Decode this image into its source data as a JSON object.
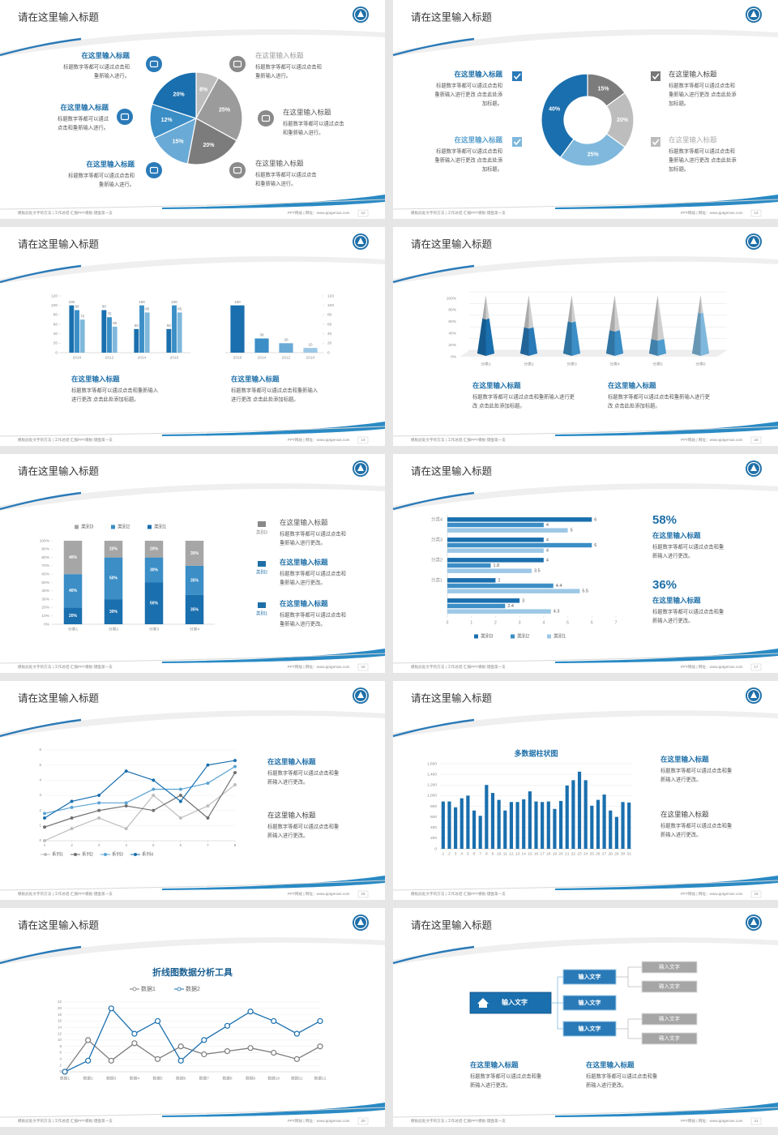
{
  "slides": [
    {
      "title": "请在这里输入标题",
      "footer_left": "模板此处文字的方法 | 工作总结-汇报PPT模板-键盘第一支",
      "footer_right": "PPT网站 | 网址：www.pptgenius.com",
      "page": 12,
      "blocks": [
        {
          "heading": "在这里输入标题",
          "lines": [
            "标题数字等都可以通过点击和",
            "重新输入进行。"
          ]
        },
        {
          "heading": "在这里输入标题",
          "lines": [
            "标题数字等都可以通过",
            "点击和重新输入进行。"
          ]
        },
        {
          "heading": "在这里输入标题",
          "lines": [
            "标题数字等都可以通过点击和",
            "重新输入进行。"
          ]
        },
        {
          "heading": "在这里输入标题",
          "lines": [
            "标题数字等都可以通过点击和",
            "重新输入进行。"
          ]
        },
        {
          "heading": "在这里输入标题",
          "lines": [
            "标题数字等都可以通过点击",
            "和重新输入进行。"
          ]
        },
        {
          "heading": "在这里输入标题",
          "lines": [
            "标题数字等都可以通过点击",
            "和重新输入进行。"
          ]
        }
      ],
      "chart_data": {
        "type": "pie",
        "values": [
          8,
          25,
          20,
          15,
          12,
          20
        ],
        "value_labels": [
          "8%",
          "25%",
          "20%",
          "15%",
          "12%",
          "20%"
        ],
        "colors": [
          "#bdbdbd",
          "#9b9b9b",
          "#7c7c7c",
          "#6aaad6",
          "#3b8ec6",
          "#1a6fae"
        ]
      }
    },
    {
      "title": "请在这里输入标题",
      "footer_left": "模板此处文字的方法 | 工作总结-汇报PPT模板-键盘第一支",
      "footer_right": "PPT网站 | 网址：www.pptgenius.com",
      "page": 13,
      "blocks": [
        {
          "heading": "在这里输入标题",
          "lines": [
            "标题数字等都可以通过点击和",
            "重新输入进行更改 点击此处添",
            "加标题。"
          ]
        },
        {
          "heading": "在这里输入标题",
          "lines": [
            "标题数字等都可以通过点击和",
            "重新输入进行更改 点击此处添",
            "加标题。"
          ]
        },
        {
          "heading": "在这里输入标题",
          "lines": [
            "标题数字等都可以通过点击和",
            "重新输入进行更改 点击此处添",
            "加标题。"
          ]
        },
        {
          "heading": "在这里输入标题",
          "lines": [
            "标题数字等都可以通过点击和",
            "重新输入进行更改 点击此处添",
            "加标题。"
          ]
        }
      ],
      "chart_data": {
        "type": "donut",
        "values": [
          15,
          20,
          25,
          40
        ],
        "value_labels": [
          "15%",
          "20%",
          "25%",
          "40%"
        ],
        "colors": [
          "#7c7c7c",
          "#bdbdbd",
          "#7fb8dc",
          "#1a6fae"
        ]
      }
    },
    {
      "title": "请在这里输入标题",
      "footer_left": "模板此处文字的方法 | 工作总结-汇报PPT模板-键盘第一支",
      "footer_right": "PPT网站 | 网址：www.pptgenius.com",
      "page": 14,
      "blocks": [
        {
          "heading": "在这里输入标题",
          "lines": [
            "标题数字等都可以通过点击和重新输入",
            "进行更改 点击此处添加标题。"
          ]
        },
        {
          "heading": "在这里输入标题",
          "lines": [
            "标题数字等都可以通过点击和重新输入",
            "进行更改 点击此处添加标题。"
          ]
        }
      ],
      "chart_data": [
        {
          "type": "bar",
          "categories": [
            "2010",
            "2012",
            "2014",
            "2016"
          ],
          "series": [
            {
              "color": "#1a6fae",
              "values": [
                100,
                90,
                50,
                50
              ]
            },
            {
              "color": "#3b8ec6",
              "values": [
                90,
                75,
                100,
                100
              ]
            },
            {
              "color": "#7fb8dc",
              "values": [
                70,
                55,
                85,
                85
              ]
            }
          ],
          "ylim": [
            0,
            120
          ],
          "yticks": [
            0,
            20,
            40,
            60,
            80,
            100,
            120
          ]
        },
        {
          "type": "bar",
          "categories": [
            "2016",
            "2014",
            "2012",
            "2010"
          ],
          "values": [
            100,
            30,
            20,
            10
          ],
          "color": "#1a6fae",
          "value_colors": [
            "#1a6fae",
            "#3b8ec6",
            "#6aaad6",
            "#9cc8e6"
          ],
          "ylim": [
            0,
            120
          ],
          "yticks": [
            0,
            20,
            40,
            60,
            80,
            100,
            120
          ],
          "y_axis": "right"
        }
      ]
    },
    {
      "title": "请在这里输入标题",
      "footer_left": "模板此处文字的方法 | 工作总结-汇报PPT模板-键盘第一支",
      "footer_right": "PPT网站 | 网址：www.pptgenius.com",
      "page": 15,
      "blocks": [
        {
          "heading": "在这里输入标题",
          "lines": [
            "标题数字等都可以通过点击和重新输入进行更",
            "改 点击此处添加标题。"
          ]
        },
        {
          "heading": "在这里输入标题",
          "lines": [
            "标题数字等都可以通过点击和重新输入进行更",
            "改 点击此处添加标题。"
          ]
        }
      ],
      "chart_data": {
        "type": "pyramid",
        "categories": [
          "分类1",
          "分类2",
          "分类3",
          "分类4",
          "分类5",
          "分类6"
        ],
        "series": [
          {
            "values": [
              60,
              45,
              55,
              40,
              25,
              70
            ],
            "colors": [
              "#1a6fae",
              "#2a7ab8",
              "#3b8ec6",
              "#3b8ec6",
              "#4f9ccf",
              "#7fb8dc"
            ]
          },
          {
            "values": [
              40,
              55,
              45,
              60,
              75,
              30
            ],
            "color": "#cfcfcf"
          }
        ],
        "ylim": [
          0,
          100
        ],
        "yticks": [
          {
            "value": 0,
            "label": "0%"
          },
          {
            "value": 20,
            "label": "20%"
          },
          {
            "value": 40,
            "label": "40%"
          },
          {
            "value": 60,
            "label": "60%"
          },
          {
            "value": 80,
            "label": "80%"
          },
          {
            "value": 100,
            "label": "100%"
          }
        ],
        "grid": true
      }
    },
    {
      "title": "请在这里输入标题",
      "footer_left": "模板此处文字的方法 | 工作总结-汇报PPT模板-键盘第一支",
      "footer_right": "PPT网站 | 网址：www.pptgenius.com",
      "page": 16,
      "blocks": [
        {
          "heading": "在这里输入标题",
          "lines": [
            "标题数字等都可以通过点击和",
            "重新输入进行更改。"
          ],
          "label": "类别3"
        },
        {
          "heading": "在这里输入标题",
          "lines": [
            "标题数字等都可以通过点击和",
            "重新输入进行更改。"
          ],
          "label": "类别2"
        },
        {
          "heading": "在这里输入标题",
          "lines": [
            "标题数字等都可以通过点击和",
            "重新输入进行更改。"
          ],
          "label": "类别1"
        }
      ],
      "chart_data": {
        "type": "bar",
        "stacked": true,
        "legend": "top",
        "categories": [
          "分类1",
          "分类2",
          "分类3",
          "分类4"
        ],
        "series": [
          {
            "name": "类别3",
            "color": "#a6a6a6",
            "values": [
              40,
              20,
              20,
              30
            ],
            "value_labels": [
              "40%",
              "20%",
              "20%",
              "30%"
            ]
          },
          {
            "name": "类别2",
            "color": "#3b8ec6",
            "values": [
              40,
              50,
              30,
              35
            ],
            "value_labels": [
              "40%",
              "50%",
              "30%",
              "35%"
            ]
          },
          {
            "name": "类别1",
            "color": "#1a6fae",
            "values": [
              20,
              30,
              50,
              35
            ],
            "value_labels": [
              "20%",
              "30%",
              "50%",
              "35%"
            ]
          }
        ],
        "ylim": [
          0,
          100
        ],
        "yticks": [
          {
            "value": 0,
            "label": "0%"
          },
          {
            "value": 10,
            "label": "10%"
          },
          {
            "value": 20,
            "label": "20%"
          },
          {
            "value": 30,
            "label": "30%"
          },
          {
            "value": 40,
            "label": "40%"
          },
          {
            "value": 50,
            "label": "50%"
          },
          {
            "value": 60,
            "label": "60%"
          },
          {
            "value": 70,
            "label": "70%"
          },
          {
            "value": 80,
            "label": "80%"
          },
          {
            "value": 90,
            "label": "90%"
          },
          {
            "value": 100,
            "label": "100%"
          }
        ]
      }
    },
    {
      "title": "请在这里输入标题",
      "footer_left": "模板此处文字的方法 | 工作总结-汇报PPT模板-键盘第一支",
      "footer_right": "PPT网站 | 网址：www.pptgenius.com",
      "page": 17,
      "blocks": [
        {
          "percent": "58%",
          "heading": "在这里输入标题",
          "lines": [
            "标题数字等都可以通过点击和重",
            "新输入进行更改。"
          ]
        },
        {
          "percent": "36%",
          "heading": "在这里输入标题",
          "lines": [
            "标题数字等都可以通过点击和重",
            "新输入进行更改。"
          ]
        }
      ],
      "chart_data": {
        "type": "bar",
        "orientation": "horizontal",
        "legend": "bottom",
        "categories": [
          null,
          "分类1",
          "分类2",
          "分类3",
          "分类4"
        ],
        "series": [
          {
            "name": "类别3",
            "color": "#1a6fae",
            "values": [
              3,
              2,
              4,
              4,
              6
            ]
          },
          {
            "name": "类别2",
            "color": "#3b8ec6",
            "values": [
              2.4,
              4.4,
              1.8,
              6,
              4
            ]
          },
          {
            "name": "类别1",
            "color": "#9cc8e6",
            "values": [
              4.3,
              5.5,
              3.5,
              4,
              5
            ]
          }
        ],
        "xlim": [
          0,
          7
        ],
        "xticks": [
          0,
          1,
          2,
          3,
          4,
          5,
          6,
          7
        ]
      }
    },
    {
      "title": "请在这里输入标题",
      "footer_left": "模板此处文字的方法 | 工作总结-汇报PPT模板-键盘第一支",
      "footer_right": "PPT网站 | 网址：www.pptgenius.com",
      "page": 18,
      "blocks": [
        {
          "heading": "在这里输入标题",
          "lines": [
            "标题数字等都可以通过点击和重",
            "新输入进行更改。"
          ]
        },
        {
          "heading": "在这里输入标题",
          "lines": [
            "标题数字等都可以通过点击和重",
            "新输入进行更改。"
          ]
        }
      ],
      "chart_data": {
        "type": "line",
        "legend": "bottom",
        "markers": "dot",
        "x": [
          1,
          2,
          3,
          4,
          5,
          6,
          7,
          8
        ],
        "xlim": [
          1,
          8
        ],
        "xticks": [
          1,
          2,
          3,
          4,
          5,
          6,
          7,
          8
        ],
        "series": [
          {
            "name": "系列1",
            "color": "#bdbdbd",
            "values": [
              0,
              0.8,
              1.5,
              0.8,
              3,
              1.5,
              2.3,
              3.7
            ]
          },
          {
            "name": "系列2",
            "color": "#6f6f6f",
            "values": [
              0.9,
              1.5,
              2,
              2.3,
              2,
              3,
              1.5,
              4.5
            ]
          },
          {
            "name": "系列3",
            "color": "#5aa3d4",
            "values": [
              1.8,
              2.2,
              2.5,
              2.5,
              3.4,
              3.4,
              3.8,
              4.9
            ]
          },
          {
            "name": "系列4",
            "color": "#1a6fae",
            "values": [
              1.5,
              2.6,
              3,
              4.6,
              4,
              2.6,
              5,
              5.3
            ]
          }
        ],
        "ylim": [
          0,
          6
        ],
        "yticks": [
          0,
          1,
          2,
          3,
          4,
          5,
          6
        ],
        "grid": true
      }
    },
    {
      "title": "请在这里输入标题",
      "footer_left": "模板此处文字的方法 | 工作总结-汇报PPT模板-键盘第一支",
      "footer_right": "PPT网站 | 网址：www.pptgenius.com",
      "page": 19,
      "blocks": [
        {
          "heading": "在这里输入标题",
          "lines": [
            "标题数字等都可以通过点击和重",
            "新输入进行更改。"
          ]
        },
        {
          "heading": "在这里输入标题",
          "lines": [
            "标题数字等都可以通过点击和重",
            "新输入进行更改。"
          ]
        }
      ],
      "chart_data": {
        "type": "bar",
        "title": "多数据柱状图",
        "categories": [
          "1",
          "2",
          "3",
          "4",
          "5",
          "6",
          "7",
          "8",
          "9",
          "10",
          "11",
          "12",
          "13",
          "14",
          "15",
          "16",
          "17",
          "18",
          "19",
          "20",
          "21",
          "22",
          "23",
          "24",
          "25",
          "26",
          "27",
          "28",
          "29",
          "30",
          "31"
        ],
        "values": [
          890,
          890,
          780,
          950,
          1000,
          720,
          620,
          1200,
          1050,
          920,
          720,
          880,
          880,
          930,
          1080,
          890,
          880,
          890,
          750,
          900,
          1190,
          1290,
          1450,
          1290,
          810,
          920,
          1020,
          720,
          600,
          880,
          870
        ],
        "color": "#1a6fae",
        "ylim": [
          0,
          1600
        ],
        "yticks": [
          0,
          200,
          400,
          600,
          800,
          {
            "value": 1000,
            "label": "1,000"
          },
          {
            "value": 1200,
            "label": "1,200"
          },
          {
            "value": 1400,
            "label": "1,400"
          },
          {
            "value": 1600,
            "label": "1,600"
          }
        ],
        "grid": true
      }
    },
    {
      "title": "请在这里输入标题",
      "footer_left": "模板此处文字的方法 | 工作总结-汇报PPT模板-键盘第一支",
      "footer_right": "PPT网站 | 网址：www.pptgenius.com",
      "page": 20,
      "blocks": [],
      "chart_data": {
        "type": "line",
        "title": "折线图数据分析工具",
        "legend": "top",
        "markers": "ring",
        "categories": [
          "数据1",
          "数据2",
          "数据3",
          "数据4",
          "数据5",
          "数据6",
          "数据7",
          "数据8",
          "数据9",
          "数据10",
          "数据11",
          "数据12"
        ],
        "series": [
          {
            "name": "数据1",
            "color": "#7c7c7c",
            "values": [
              0,
              10,
              3.5,
              9,
              4,
              8,
              5.5,
              6.5,
              7.5,
              6,
              4,
              8
            ]
          },
          {
            "name": "数据2",
            "color": "#1a6fae",
            "values": [
              0,
              3.5,
              20,
              12,
              16,
              3.5,
              10,
              14.5,
              19,
              16,
              12,
              16
            ]
          }
        ],
        "ylim": [
          0,
          22
        ],
        "yticks": [
          0,
          2,
          4,
          6,
          8,
          10,
          12,
          14,
          16,
          18,
          20,
          22
        ],
        "grid": true
      }
    },
    {
      "title": "请在这里输入标题",
      "footer_left": "模板此处文字的方法 | 工作总结-汇报PPT模板-键盘第一支",
      "footer_right": "PPT网站 | 网址：www.pptgenius.com",
      "page": 21,
      "blocks": [
        {
          "heading": "在这里输入标题",
          "lines": [
            "标题数字等都可以通过点击和重",
            "新输入进行更改。"
          ]
        },
        {
          "heading": "在这里输入标题",
          "lines": [
            "标题数字等都可以通过点击和重",
            "新输入进行更改。"
          ]
        }
      ],
      "diagram": {
        "root": "输入文字",
        "children": [
          {
            "label": "输入文字",
            "children": [
              "输入文字",
              "输入文字"
            ]
          },
          {
            "label": "输入文字",
            "children": []
          },
          {
            "label": "输入文字",
            "children": [
              "输入文字",
              "输入文字"
            ]
          }
        ]
      }
    }
  ]
}
